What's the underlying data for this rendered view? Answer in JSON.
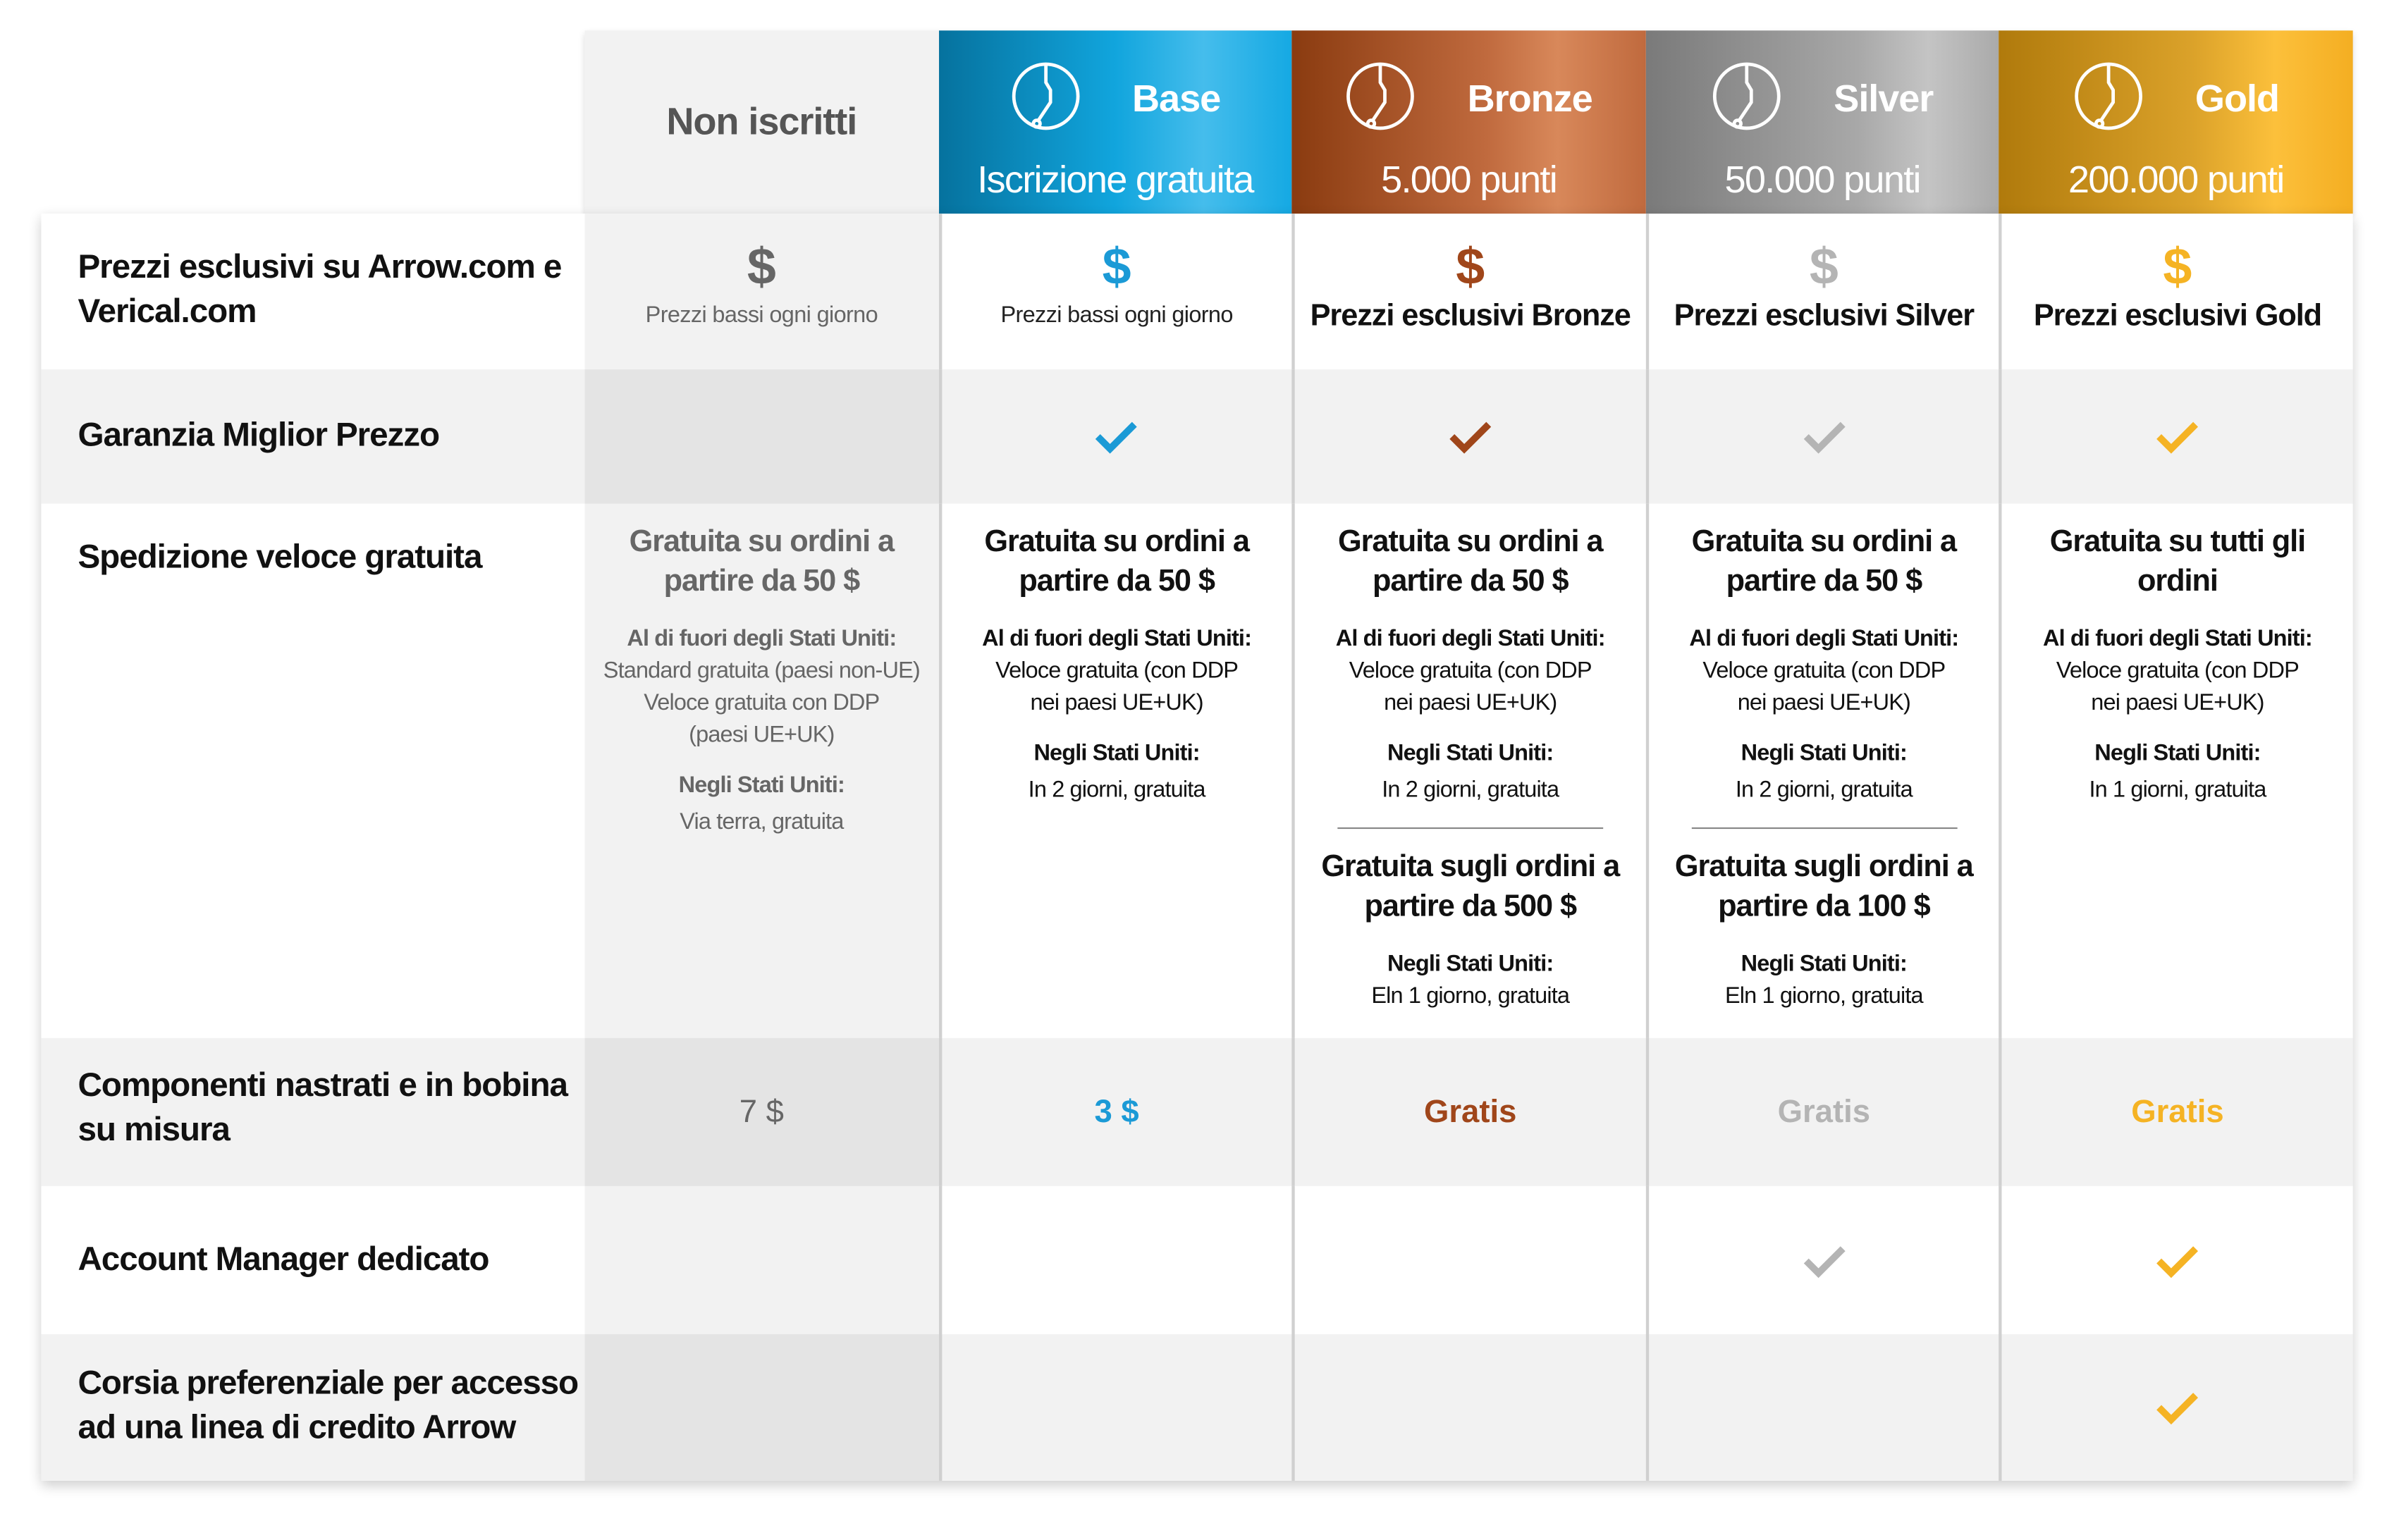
{
  "colors": {
    "base": "#1b9ad6",
    "bronze": "#a0461a",
    "silver": "#b4b4b4",
    "gold": "#f5b324",
    "none": "#666666"
  },
  "header": {
    "none": "Non iscritti",
    "tiers": [
      {
        "name": "Base",
        "sub": "Iscrizione gratuita",
        "icon": "circuit-icon"
      },
      {
        "name": "Bronze",
        "sub": "5.000 punti",
        "icon": "circuit-icon"
      },
      {
        "name": "Silver",
        "sub": "50.000 punti",
        "icon": "circuit-icon"
      },
      {
        "name": "Gold",
        "sub": "200.000 punti",
        "icon": "circuit-icon"
      }
    ]
  },
  "rows": {
    "prices": {
      "label": "Prezzi esclusivi su Arrow.com e Verical.com",
      "symbol": "$",
      "none": "Prezzi bassi ogni giorno",
      "base": "Prezzi bassi ogni giorno",
      "bronze": "Prezzi esclusivi Bronze",
      "silver": "Prezzi esclusivi Silver",
      "gold": "Prezzi esclusivi Gold"
    },
    "guarantee": {
      "label": "Garanzia Miglior Prezzo",
      "checks": {
        "none": false,
        "base": true,
        "bronze": true,
        "silver": true,
        "gold": true
      }
    },
    "shipping": {
      "label": "Spedizione veloce gratuita",
      "none": {
        "big": "Gratuita su ordini a partire da 50 $",
        "h1": "Al di fuori degli Stati Uniti:",
        "t1": [
          "Standard gratuita (paesi non-UE)",
          "Veloce gratuita con DDP",
          "(paesi UE+UK)"
        ],
        "h2": "Negli Stati Uniti:",
        "t2": "Via terra, gratuita"
      },
      "base": {
        "big": "Gratuita su ordini a partire da 50 $",
        "h1": "Al di fuori degli Stati Uniti:",
        "t1": [
          "Veloce gratuita (con DDP",
          "nei paesi UE+UK)"
        ],
        "h2": "Negli Stati Uniti:",
        "t2": "In 2 giorni, gratuita"
      },
      "bronze": {
        "big": "Gratuita su ordini a partire da 50 $",
        "h1": "Al di fuori degli Stati Uniti:",
        "t1": [
          "Veloce gratuita (con DDP",
          "nei paesi UE+UK)"
        ],
        "h2": "Negli Stati Uniti:",
        "t2": "In 2 giorni, gratuita",
        "big2": "Gratuita sugli ordini a partire da 500 $",
        "h3": "Negli Stati Uniti:",
        "t3": "Eln 1 giorno, gratuita"
      },
      "silver": {
        "big": "Gratuita su ordini a partire da 50 $",
        "h1": "Al di fuori degli Stati Uniti:",
        "t1": [
          "Veloce gratuita (con DDP",
          "nei paesi UE+UK)"
        ],
        "h2": "Negli Stati Uniti:",
        "t2": "In 2 giorni, gratuita",
        "big2": "Gratuita sugli ordini a partire da 100 $",
        "h3": "Negli Stati Uniti:",
        "t3": "Eln 1 giorno, gratuita"
      },
      "gold": {
        "big": "Gratuita su tutti gli ordini",
        "h1": "Al di fuori degli Stati Uniti:",
        "t1": [
          "Veloce gratuita (con DDP",
          "nei paesi UE+UK)"
        ],
        "h2": "Negli Stati Uniti:",
        "t2": "In 1 giorni, gratuita"
      }
    },
    "reel": {
      "label": "Componenti nastrati e in bobina su misura",
      "none": "7 $",
      "base": "3 $",
      "bronze": "Gratis",
      "silver": "Gratis",
      "gold": "Gratis"
    },
    "manager": {
      "label": "Account Manager dedicato",
      "checks": {
        "none": false,
        "base": false,
        "bronze": false,
        "silver": true,
        "gold": true
      }
    },
    "credit": {
      "label": "Corsia preferenziale per accesso ad una linea di credito Arrow",
      "checks": {
        "none": false,
        "base": false,
        "bronze": false,
        "silver": false,
        "gold": true
      }
    }
  }
}
